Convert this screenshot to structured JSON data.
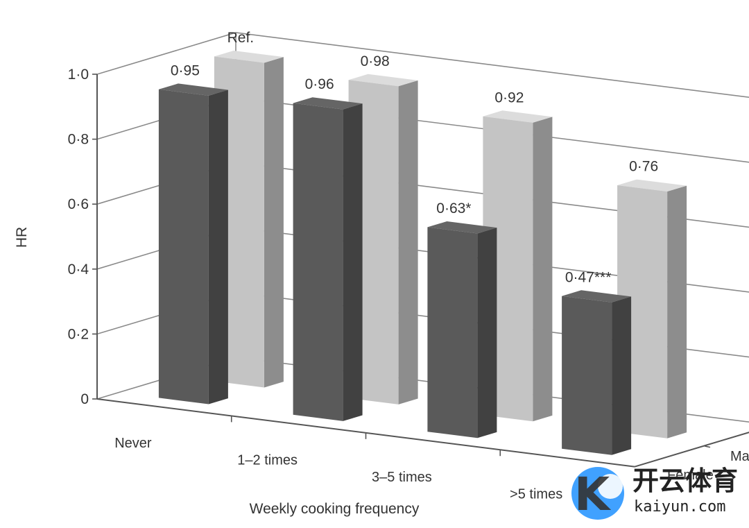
{
  "chart_data": {
    "type": "bar",
    "style": "3d-clustered",
    "xlabel": "Weekly cooking frequency",
    "ylabel": "HR",
    "ylim": [
      0,
      1.0
    ],
    "yticks": [
      "0",
      "0·2",
      "0·4",
      "0·6",
      "0·8",
      "1·0"
    ],
    "categories": [
      "Never",
      "1–2 times",
      "3–5 times",
      ">5 times"
    ],
    "series": [
      {
        "name": "Female",
        "color": "#5a5a5a",
        "values": [
          0.95,
          0.96,
          0.63,
          0.47
        ],
        "labels": [
          "0·95",
          "0·96",
          "0·63*",
          "0·47***"
        ]
      },
      {
        "name": "Male",
        "color": "#c4c4c4",
        "values": [
          1.0,
          0.98,
          0.92,
          0.76
        ],
        "labels": [
          "Ref.",
          "0·98",
          "0·92",
          "0·76"
        ]
      }
    ],
    "grid": true
  },
  "watermark": {
    "text_cn": "开云体育",
    "text_en": "kaiyun.com",
    "logo_letter": "K",
    "color": "#1e90ff"
  }
}
